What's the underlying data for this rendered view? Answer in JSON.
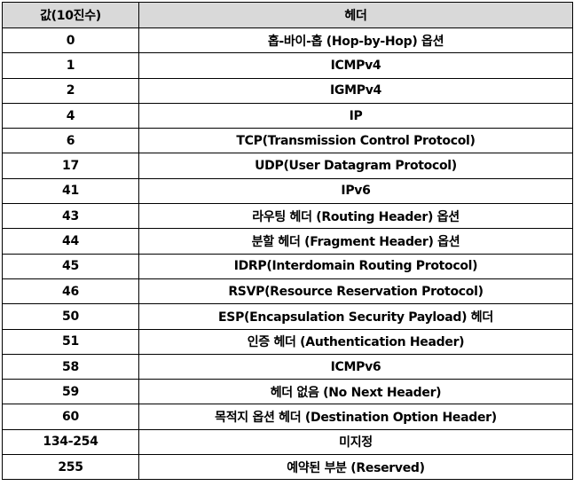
{
  "table": {
    "headers": [
      "값(10진수)",
      "헤더"
    ],
    "rows": [
      {
        "value": "0",
        "header": "홉-바이-홉 (Hop-by-Hop) 옵션"
      },
      {
        "value": "1",
        "header": "ICMPv4"
      },
      {
        "value": "2",
        "header": "IGMPv4"
      },
      {
        "value": "4",
        "header": "IP"
      },
      {
        "value": "6",
        "header": "TCP(Transmission Control Protocol)"
      },
      {
        "value": "17",
        "header": "UDP(User Datagram Protocol)"
      },
      {
        "value": "41",
        "header": "IPv6"
      },
      {
        "value": "43",
        "header": "라우팅 헤더 (Routing Header) 옵션"
      },
      {
        "value": "44",
        "header": "분할 헤더 (Fragment Header) 옵션"
      },
      {
        "value": "45",
        "header": "IDRP(Interdomain Routing Protocol)"
      },
      {
        "value": "46",
        "header": "RSVP(Resource Reservation Protocol)"
      },
      {
        "value": "50",
        "header": "ESP(Encapsulation Security Payload) 헤더"
      },
      {
        "value": "51",
        "header": "인증 헤더 (Authentication Header)"
      },
      {
        "value": "58",
        "header": "ICMPv6"
      },
      {
        "value": "59",
        "header": "헤더 없음 (No Next Header)"
      },
      {
        "value": "60",
        "header": "목적지 옵션 헤더 (Destination Option Header)"
      },
      {
        "value": "134-254",
        "header": "미지정"
      },
      {
        "value": "255",
        "header": "예약된 부분 (Reserved)"
      }
    ]
  },
  "colors": {
    "header_background": "#d9d9d9",
    "border": "#000000",
    "text": "#000000"
  }
}
